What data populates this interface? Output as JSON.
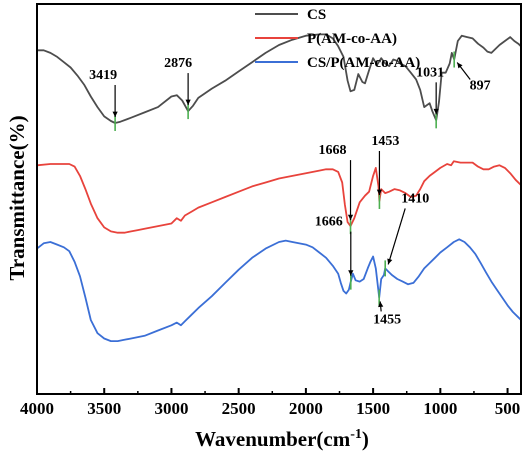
{
  "chart_data": {
    "type": "line",
    "title": "",
    "xlabel": "Wavenumber(cm",
    "xlabel_sup": "-1",
    "xlabel_close": ")",
    "ylabel": "Transmittance(%)",
    "xlim": [
      4000,
      400
    ],
    "x_reversed": true,
    "x_ticks": [
      4000,
      3500,
      3000,
      2500,
      2000,
      1500,
      1000,
      500
    ],
    "y_ticks_shown": false,
    "grid": false,
    "legend_position": "top-right",
    "series": [
      {
        "name": "CS",
        "color": "#4d4d4d",
        "points": [
          [
            4000,
            5.5
          ],
          [
            3950,
            5.5
          ],
          [
            3900,
            5.3
          ],
          [
            3850,
            5.0
          ],
          [
            3800,
            4.6
          ],
          [
            3750,
            4.2
          ],
          [
            3700,
            3.6
          ],
          [
            3650,
            2.9
          ],
          [
            3600,
            2.0
          ],
          [
            3550,
            1.2
          ],
          [
            3500,
            0.5
          ],
          [
            3450,
            0.15
          ],
          [
            3419,
            0.0
          ],
          [
            3380,
            0.1
          ],
          [
            3300,
            0.4
          ],
          [
            3200,
            0.8
          ],
          [
            3100,
            1.2
          ],
          [
            3000,
            2.0
          ],
          [
            2960,
            2.1
          ],
          [
            2920,
            1.7
          ],
          [
            2876,
            0.9
          ],
          [
            2840,
            1.3
          ],
          [
            2800,
            1.9
          ],
          [
            2700,
            2.6
          ],
          [
            2600,
            3.2
          ],
          [
            2500,
            3.9
          ],
          [
            2400,
            4.6
          ],
          [
            2300,
            5.3
          ],
          [
            2200,
            5.9
          ],
          [
            2100,
            6.3
          ],
          [
            2000,
            6.6
          ],
          [
            1900,
            6.7
          ],
          [
            1850,
            6.7
          ],
          [
            1800,
            6.4
          ],
          [
            1760,
            5.8
          ],
          [
            1720,
            5.0
          ],
          [
            1690,
            3.2
          ],
          [
            1668,
            2.4
          ],
          [
            1640,
            2.5
          ],
          [
            1610,
            3.7
          ],
          [
            1580,
            3.1
          ],
          [
            1560,
            3.0
          ],
          [
            1530,
            4.0
          ],
          [
            1500,
            4.9
          ],
          [
            1470,
            4.4
          ],
          [
            1440,
            4.9
          ],
          [
            1410,
            4.5
          ],
          [
            1380,
            4.3
          ],
          [
            1350,
            4.8
          ],
          [
            1320,
            4.7
          ],
          [
            1300,
            4.5
          ],
          [
            1260,
            4.3
          ],
          [
            1220,
            3.8
          ],
          [
            1180,
            3.3
          ],
          [
            1150,
            2.5
          ],
          [
            1120,
            1.2
          ],
          [
            1080,
            1.5
          ],
          [
            1060,
            0.9
          ],
          [
            1031,
            0.2
          ],
          [
            1010,
            1.6
          ],
          [
            990,
            3.8
          ],
          [
            960,
            3.8
          ],
          [
            930,
            4.5
          ],
          [
            915,
            5.3
          ],
          [
            897,
            4.8
          ],
          [
            870,
            6.2
          ],
          [
            840,
            6.6
          ],
          [
            800,
            6.5
          ],
          [
            760,
            6.4
          ],
          [
            720,
            6.0
          ],
          [
            680,
            5.7
          ],
          [
            650,
            5.4
          ],
          [
            620,
            5.3
          ],
          [
            590,
            5.6
          ],
          [
            560,
            5.9
          ],
          [
            520,
            6.2
          ],
          [
            480,
            6.5
          ],
          [
            450,
            6.2
          ],
          [
            420,
            6.0
          ],
          [
            400,
            5.8
          ]
        ]
      },
      {
        "name": "P(AM-co-AA)",
        "color": "#e8433c",
        "points": [
          [
            4000,
            -3.2
          ],
          [
            3900,
            -3.1
          ],
          [
            3800,
            -3.1
          ],
          [
            3760,
            -3.1
          ],
          [
            3720,
            -3.3
          ],
          [
            3680,
            -4.0
          ],
          [
            3640,
            -5.0
          ],
          [
            3600,
            -6.1
          ],
          [
            3550,
            -7.2
          ],
          [
            3500,
            -7.9
          ],
          [
            3450,
            -8.2
          ],
          [
            3400,
            -8.3
          ],
          [
            3350,
            -8.3
          ],
          [
            3300,
            -8.2
          ],
          [
            3250,
            -8.1
          ],
          [
            3200,
            -8.0
          ],
          [
            3100,
            -7.8
          ],
          [
            3000,
            -7.6
          ],
          [
            2960,
            -7.2
          ],
          [
            2930,
            -7.4
          ],
          [
            2900,
            -7.0
          ],
          [
            2850,
            -6.7
          ],
          [
            2800,
            -6.4
          ],
          [
            2700,
            -6.0
          ],
          [
            2600,
            -5.6
          ],
          [
            2500,
            -5.2
          ],
          [
            2400,
            -4.8
          ],
          [
            2300,
            -4.5
          ],
          [
            2200,
            -4.2
          ],
          [
            2100,
            -4.0
          ],
          [
            2000,
            -3.8
          ],
          [
            1900,
            -3.6
          ],
          [
            1850,
            -3.5
          ],
          [
            1800,
            -3.5
          ],
          [
            1760,
            -3.7
          ],
          [
            1730,
            -4.5
          ],
          [
            1710,
            -6.2
          ],
          [
            1690,
            -7.5
          ],
          [
            1668,
            -7.8
          ],
          [
            1640,
            -7.2
          ],
          [
            1600,
            -6.0
          ],
          [
            1560,
            -5.5
          ],
          [
            1530,
            -5.2
          ],
          [
            1500,
            -4.0
          ],
          [
            1480,
            -3.4
          ],
          [
            1460,
            -4.8
          ],
          [
            1453,
            -5.9
          ],
          [
            1440,
            -5.0
          ],
          [
            1410,
            -5.3
          ],
          [
            1380,
            -5.2
          ],
          [
            1340,
            -5.0
          ],
          [
            1300,
            -5.1
          ],
          [
            1260,
            -5.3
          ],
          [
            1220,
            -5.6
          ],
          [
            1180,
            -5.5
          ],
          [
            1150,
            -5.0
          ],
          [
            1120,
            -4.4
          ],
          [
            1080,
            -4.0
          ],
          [
            1040,
            -3.7
          ],
          [
            1000,
            -3.4
          ],
          [
            950,
            -3.1
          ],
          [
            920,
            -3.2
          ],
          [
            900,
            -2.9
          ],
          [
            850,
            -3.0
          ],
          [
            800,
            -3.0
          ],
          [
            760,
            -3.0
          ],
          [
            720,
            -3.3
          ],
          [
            680,
            -3.5
          ],
          [
            640,
            -3.5
          ],
          [
            600,
            -3.3
          ],
          [
            560,
            -3.2
          ],
          [
            520,
            -3.4
          ],
          [
            480,
            -3.8
          ],
          [
            440,
            -4.3
          ],
          [
            400,
            -4.7
          ]
        ]
      },
      {
        "name": "CS/P(AM-co-AA)",
        "color": "#3b6fd6",
        "points": [
          [
            4000,
            -9.5
          ],
          [
            3950,
            -9.1
          ],
          [
            3900,
            -9.0
          ],
          [
            3850,
            -9.2
          ],
          [
            3800,
            -9.4
          ],
          [
            3760,
            -9.7
          ],
          [
            3720,
            -10.5
          ],
          [
            3680,
            -11.6
          ],
          [
            3640,
            -13.2
          ],
          [
            3600,
            -14.9
          ],
          [
            3550,
            -15.9
          ],
          [
            3500,
            -16.3
          ],
          [
            3450,
            -16.5
          ],
          [
            3400,
            -16.5
          ],
          [
            3350,
            -16.4
          ],
          [
            3300,
            -16.3
          ],
          [
            3200,
            -16.1
          ],
          [
            3100,
            -15.7
          ],
          [
            3000,
            -15.3
          ],
          [
            2960,
            -15.1
          ],
          [
            2930,
            -15.3
          ],
          [
            2900,
            -15.0
          ],
          [
            2850,
            -14.5
          ],
          [
            2800,
            -14.0
          ],
          [
            2700,
            -13.1
          ],
          [
            2600,
            -12.1
          ],
          [
            2500,
            -11.1
          ],
          [
            2400,
            -10.2
          ],
          [
            2300,
            -9.5
          ],
          [
            2200,
            -9.0
          ],
          [
            2150,
            -8.9
          ],
          [
            2100,
            -9.0
          ],
          [
            2000,
            -9.2
          ],
          [
            1950,
            -9.4
          ],
          [
            1900,
            -9.8
          ],
          [
            1850,
            -10.2
          ],
          [
            1800,
            -10.8
          ],
          [
            1760,
            -11.4
          ],
          [
            1740,
            -12.1
          ],
          [
            1720,
            -12.7
          ],
          [
            1700,
            -12.9
          ],
          [
            1680,
            -12.6
          ],
          [
            1666,
            -12.0
          ],
          [
            1650,
            -11.4
          ],
          [
            1630,
            -11.9
          ],
          [
            1600,
            -12.0
          ],
          [
            1570,
            -11.8
          ],
          [
            1540,
            -11.0
          ],
          [
            1520,
            -10.5
          ],
          [
            1500,
            -10.1
          ],
          [
            1480,
            -11.0
          ],
          [
            1455,
            -13.2
          ],
          [
            1440,
            -11.8
          ],
          [
            1420,
            -11.5
          ],
          [
            1410,
            -11.0
          ],
          [
            1390,
            -11.2
          ],
          [
            1360,
            -11.5
          ],
          [
            1320,
            -11.8
          ],
          [
            1280,
            -12.0
          ],
          [
            1240,
            -12.2
          ],
          [
            1200,
            -12.1
          ],
          [
            1160,
            -11.6
          ],
          [
            1120,
            -11.0
          ],
          [
            1080,
            -10.6
          ],
          [
            1040,
            -10.2
          ],
          [
            1000,
            -9.8
          ],
          [
            950,
            -9.4
          ],
          [
            900,
            -9.0
          ],
          [
            860,
            -8.8
          ],
          [
            820,
            -9.0
          ],
          [
            780,
            -9.4
          ],
          [
            740,
            -9.9
          ],
          [
            700,
            -10.6
          ],
          [
            660,
            -11.3
          ],
          [
            620,
            -12.0
          ],
          [
            580,
            -12.6
          ],
          [
            540,
            -13.2
          ],
          [
            500,
            -13.8
          ],
          [
            460,
            -14.3
          ],
          [
            420,
            -14.7
          ],
          [
            400,
            -14.9
          ]
        ]
      }
    ],
    "annotations": [
      {
        "label": "3419",
        "x": 3419,
        "series": "CS"
      },
      {
        "label": "2876",
        "x": 2876,
        "series": "CS"
      },
      {
        "label": "1031",
        "x": 1031,
        "series": "CS"
      },
      {
        "label": "897",
        "x": 897,
        "series": "CS"
      },
      {
        "label": "1668",
        "x": 1668,
        "series": "P(AM-co-AA)"
      },
      {
        "label": "1453",
        "x": 1453,
        "series": "P(AM-co-AA)"
      },
      {
        "label": "1666",
        "x": 1666,
        "series": "CS/P(AM-co-AA)"
      },
      {
        "label": "1410",
        "x": 1410,
        "series": "CS/P(AM-co-AA)"
      },
      {
        "label": "1455",
        "x": 1455,
        "series": "CS/P(AM-co-AA)"
      }
    ]
  }
}
